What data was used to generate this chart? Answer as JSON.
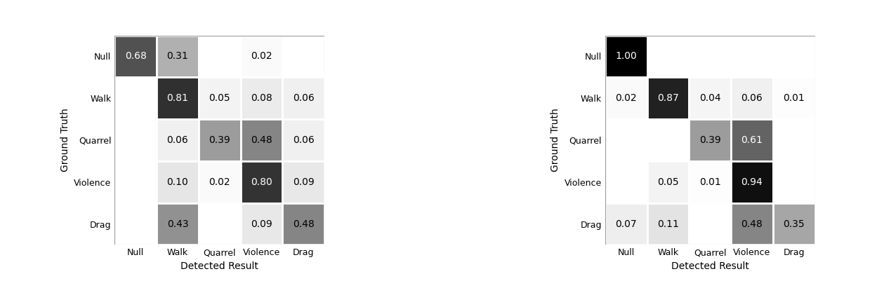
{
  "labels": [
    "Null",
    "Walk",
    "Quarrel",
    "Violence",
    "Drag"
  ],
  "matrix1": [
    [
      0.68,
      0.31,
      null,
      0.02,
      null
    ],
    [
      null,
      0.81,
      0.05,
      0.08,
      0.06
    ],
    [
      null,
      0.06,
      0.39,
      0.48,
      0.06
    ],
    [
      null,
      0.1,
      0.02,
      0.8,
      0.09
    ],
    [
      null,
      0.43,
      null,
      0.09,
      0.48
    ]
  ],
  "matrix2": [
    [
      1.0,
      null,
      null,
      null,
      null
    ],
    [
      0.02,
      0.87,
      0.04,
      0.06,
      0.01
    ],
    [
      null,
      null,
      0.39,
      0.61,
      null
    ],
    [
      null,
      0.05,
      0.01,
      0.94,
      null
    ],
    [
      0.07,
      0.11,
      null,
      0.48,
      0.35
    ]
  ],
  "xlabel": "Detected Result",
  "ylabel": "Ground Truth",
  "cmap": "gray_r",
  "figsize": [
    12.49,
    4.21
  ],
  "dpi": 100,
  "fontsize_tick": 9,
  "fontsize_label": 10,
  "fontsize_value": 10
}
